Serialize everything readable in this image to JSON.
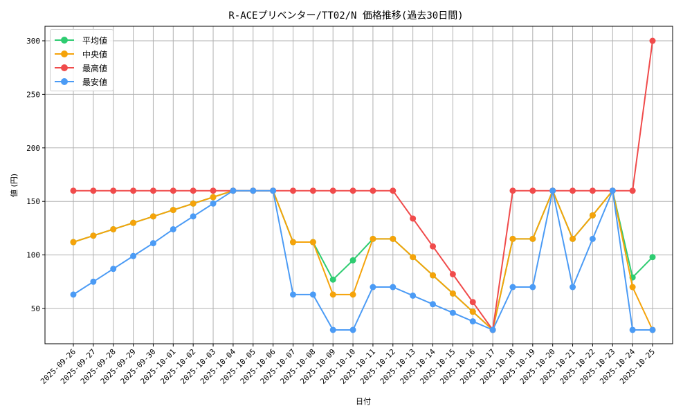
{
  "chart_data": {
    "type": "line",
    "title": "R-ACEプリベンター/TT02/N 価格推移(過去30日間)",
    "xlabel": "日付",
    "ylabel": "値 (円)",
    "ylim": [
      17,
      313
    ],
    "yticks": [
      50,
      100,
      150,
      200,
      250,
      300
    ],
    "grid": true,
    "legend_position": "upper left",
    "categories": [
      "2025-09-26",
      "2025-09-27",
      "2025-09-28",
      "2025-09-29",
      "2025-09-30",
      "2025-10-01",
      "2025-10-02",
      "2025-10-03",
      "2025-10-04",
      "2025-10-05",
      "2025-10-06",
      "2025-10-07",
      "2025-10-08",
      "2025-10-09",
      "2025-10-10",
      "2025-10-11",
      "2025-10-12",
      "2025-10-13",
      "2025-10-14",
      "2025-10-15",
      "2025-10-16",
      "2025-10-17",
      "2025-10-18",
      "2025-10-19",
      "2025-10-20",
      "2025-10-21",
      "2025-10-22",
      "2025-10-23",
      "2025-10-24",
      "2025-10-25"
    ],
    "series": [
      {
        "name": "平均値",
        "color": "#2ecc71",
        "values": [
          112,
          118,
          124,
          130,
          136,
          142,
          148,
          154,
          160,
          160,
          160,
          112,
          112,
          77,
          95,
          115,
          115,
          98,
          81,
          64,
          47,
          30,
          115,
          115,
          160,
          115,
          137,
          160,
          79,
          98
        ]
      },
      {
        "name": "中央値",
        "color": "#f5a30a",
        "values": [
          112,
          118,
          124,
          130,
          136,
          142,
          148,
          154,
          160,
          160,
          160,
          112,
          112,
          63,
          63,
          115,
          115,
          98,
          81,
          64,
          47,
          30,
          115,
          115,
          160,
          115,
          137,
          160,
          70,
          30
        ]
      },
      {
        "name": "最高値",
        "color": "#f04b4b",
        "values": [
          160,
          160,
          160,
          160,
          160,
          160,
          160,
          160,
          160,
          160,
          160,
          160,
          160,
          160,
          160,
          160,
          160,
          134,
          108,
          82,
          56,
          30,
          160,
          160,
          160,
          160,
          160,
          160,
          160,
          300
        ]
      },
      {
        "name": "最安値",
        "color": "#4b9bf5",
        "values": [
          63,
          75,
          87,
          99,
          111,
          124,
          136,
          148,
          160,
          160,
          160,
          63,
          63,
          30,
          30,
          70,
          70,
          62,
          54,
          46,
          38,
          30,
          70,
          70,
          160,
          70,
          115,
          160,
          30,
          30
        ]
      }
    ]
  }
}
